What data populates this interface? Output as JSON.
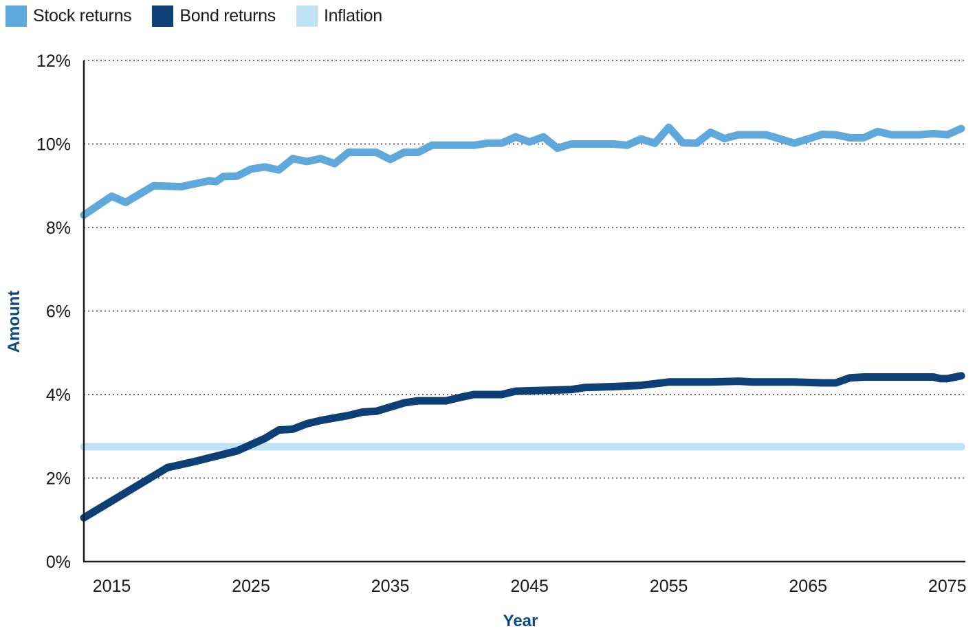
{
  "legend": [
    {
      "label": "Stock returns",
      "color": "#5ea8dc"
    },
    {
      "label": "Bond returns",
      "color": "#0b3f75"
    },
    {
      "label": "Inflation",
      "color": "#bfe2f5"
    }
  ],
  "chart_data": {
    "type": "line",
    "xlabel": "Year",
    "ylabel": "Amount",
    "xlim": [
      2013,
      2076
    ],
    "ylim": [
      0,
      12
    ],
    "x_ticks": [
      2015,
      2025,
      2035,
      2045,
      2055,
      2065,
      2075
    ],
    "y_ticks": [
      0,
      2,
      4,
      6,
      8,
      10,
      12
    ],
    "y_tick_labels": [
      "0%",
      "2%",
      "4%",
      "6%",
      "8%",
      "10%",
      "12%"
    ],
    "grid": "horizontal dotted",
    "legend_position": "top-left",
    "series": [
      {
        "name": "Stock returns",
        "color": "#5ea8dc",
        "points": [
          [
            2013,
            8.3
          ],
          [
            2015,
            8.75
          ],
          [
            2016,
            8.6
          ],
          [
            2017,
            8.8
          ],
          [
            2018,
            9.0
          ],
          [
            2020,
            8.98
          ],
          [
            2021,
            9.05
          ],
          [
            2022,
            9.12
          ],
          [
            2022.5,
            9.1
          ],
          [
            2023,
            9.22
          ],
          [
            2024,
            9.23
          ],
          [
            2025,
            9.4
          ],
          [
            2026,
            9.45
          ],
          [
            2027,
            9.38
          ],
          [
            2028,
            9.65
          ],
          [
            2029,
            9.58
          ],
          [
            2030,
            9.65
          ],
          [
            2031,
            9.53
          ],
          [
            2032,
            9.8
          ],
          [
            2034,
            9.8
          ],
          [
            2035,
            9.63
          ],
          [
            2036,
            9.8
          ],
          [
            2037,
            9.8
          ],
          [
            2038,
            9.97
          ],
          [
            2041,
            9.97
          ],
          [
            2042,
            10.02
          ],
          [
            2043,
            10.02
          ],
          [
            2044,
            10.17
          ],
          [
            2045,
            10.05
          ],
          [
            2046,
            10.17
          ],
          [
            2047,
            9.9
          ],
          [
            2048,
            10.0
          ],
          [
            2051,
            10.0
          ],
          [
            2052,
            9.97
          ],
          [
            2053,
            10.12
          ],
          [
            2054,
            10.02
          ],
          [
            2055,
            10.4
          ],
          [
            2056,
            10.03
          ],
          [
            2057,
            10.02
          ],
          [
            2058,
            10.28
          ],
          [
            2059,
            10.13
          ],
          [
            2060,
            10.22
          ],
          [
            2062,
            10.22
          ],
          [
            2063,
            10.12
          ],
          [
            2064,
            10.02
          ],
          [
            2065,
            10.12
          ],
          [
            2066,
            10.23
          ],
          [
            2067,
            10.22
          ],
          [
            2068,
            10.15
          ],
          [
            2069,
            10.15
          ],
          [
            2070,
            10.3
          ],
          [
            2071,
            10.22
          ],
          [
            2072,
            10.22
          ],
          [
            2073,
            10.22
          ],
          [
            2074,
            10.25
          ],
          [
            2075,
            10.22
          ],
          [
            2076,
            10.37
          ]
        ]
      },
      {
        "name": "Bond returns",
        "color": "#0b3f75",
        "points": [
          [
            2013,
            1.05
          ],
          [
            2015,
            1.45
          ],
          [
            2017,
            1.85
          ],
          [
            2019,
            2.25
          ],
          [
            2021,
            2.4
          ],
          [
            2024,
            2.65
          ],
          [
            2026,
            2.95
          ],
          [
            2027,
            3.15
          ],
          [
            2028,
            3.17
          ],
          [
            2029,
            3.3
          ],
          [
            2030,
            3.38
          ],
          [
            2032,
            3.5
          ],
          [
            2033,
            3.58
          ],
          [
            2034,
            3.6
          ],
          [
            2035,
            3.7
          ],
          [
            2036,
            3.8
          ],
          [
            2037,
            3.85
          ],
          [
            2038,
            3.85
          ],
          [
            2039,
            3.85
          ],
          [
            2040,
            3.93
          ],
          [
            2041,
            4.0
          ],
          [
            2043,
            4.0
          ],
          [
            2044,
            4.08
          ],
          [
            2048,
            4.12
          ],
          [
            2049,
            4.17
          ],
          [
            2051,
            4.19
          ],
          [
            2053,
            4.22
          ],
          [
            2055,
            4.3
          ],
          [
            2058,
            4.3
          ],
          [
            2060,
            4.32
          ],
          [
            2061,
            4.3
          ],
          [
            2064,
            4.3
          ],
          [
            2066,
            4.28
          ],
          [
            2067,
            4.28
          ],
          [
            2068,
            4.4
          ],
          [
            2069,
            4.42
          ],
          [
            2074,
            4.42
          ],
          [
            2074.5,
            4.38
          ],
          [
            2075,
            4.38
          ],
          [
            2076,
            4.45
          ]
        ]
      },
      {
        "name": "Inflation",
        "color": "#bfe2f5",
        "points": [
          [
            2013,
            2.75
          ],
          [
            2076,
            2.75
          ]
        ]
      }
    ]
  }
}
